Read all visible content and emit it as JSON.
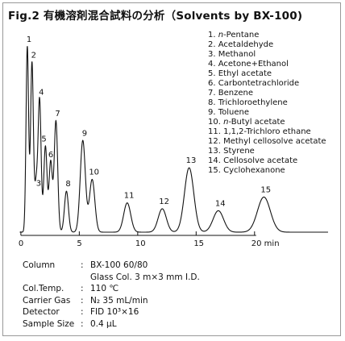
{
  "title": "Fig.2  有機溶剤混合試料の分析（Solvents by BX-100)",
  "chart_data": {
    "type": "line",
    "title": "Fig.2  有機溶剤混合試料の分析（Solvents by BX-100)",
    "xlabel": "",
    "ylabel": "",
    "xlim": [
      -0.2,
      26.5
    ],
    "ylim": [
      0,
      100
    ],
    "grid": false,
    "legend_position": "top-right",
    "x_ticks": [
      {
        "value": 0,
        "label": "0"
      },
      {
        "value": 5,
        "label": "5"
      },
      {
        "value": 10,
        "label": "10"
      },
      {
        "value": 15,
        "label": "15"
      },
      {
        "value": 20,
        "label": "20 min"
      }
    ],
    "peaks": [
      {
        "label": "1",
        "rt": 0.55,
        "height": 95,
        "width": 0.11
      },
      {
        "label": "2",
        "rt": 0.95,
        "height": 87,
        "width": 0.12
      },
      {
        "label": "3",
        "rt": 1.3,
        "height": 23,
        "width": 0.12
      },
      {
        "label": "4",
        "rt": 1.6,
        "height": 68,
        "width": 0.13
      },
      {
        "label": "5",
        "rt": 2.1,
        "height": 44,
        "width": 0.14
      },
      {
        "label": "6",
        "rt": 2.55,
        "height": 36,
        "width": 0.14
      },
      {
        "label": "7",
        "rt": 3.0,
        "height": 57,
        "width": 0.15
      },
      {
        "label": "8",
        "rt": 3.9,
        "height": 21,
        "width": 0.17
      },
      {
        "label": "9",
        "rt": 5.3,
        "height": 47,
        "width": 0.22
      },
      {
        "label": "10",
        "rt": 6.1,
        "height": 27,
        "width": 0.23
      },
      {
        "label": "11",
        "rt": 9.1,
        "height": 15,
        "width": 0.3
      },
      {
        "label": "12",
        "rt": 12.1,
        "height": 12,
        "width": 0.35
      },
      {
        "label": "13",
        "rt": 14.4,
        "height": 33,
        "width": 0.4
      },
      {
        "label": "14",
        "rt": 16.9,
        "height": 11,
        "width": 0.45
      },
      {
        "label": "15",
        "rt": 20.8,
        "height": 18,
        "width": 0.55
      }
    ]
  },
  "legend": [
    {
      "num": "1.",
      "name_prefix": "n",
      "name": "-Pentane"
    },
    {
      "num": "2.",
      "name_prefix": "",
      "name": "Acetaldehyde"
    },
    {
      "num": "3.",
      "name_prefix": "",
      "name": "Methanol"
    },
    {
      "num": "4.",
      "name_prefix": "",
      "name": "Acetone+Ethanol"
    },
    {
      "num": "5.",
      "name_prefix": "",
      "name": "Ethyl acetate"
    },
    {
      "num": "6.",
      "name_prefix": "",
      "name": "Carbontetrachloride"
    },
    {
      "num": "7.",
      "name_prefix": "",
      "name": "Benzene"
    },
    {
      "num": "8.",
      "name_prefix": "",
      "name": "Trichloroethylene"
    },
    {
      "num": "9.",
      "name_prefix": "",
      "name": "Toluene"
    },
    {
      "num": "10.",
      "name_prefix": "n",
      "name": "-Butyl acetate"
    },
    {
      "num": "11.",
      "name_prefix": "",
      "name": "1,1,2-Trichloro ethane"
    },
    {
      "num": "12.",
      "name_prefix": "",
      "name": "Methyl cellosolve acetate"
    },
    {
      "num": "13.",
      "name_prefix": "",
      "name": "Styrene"
    },
    {
      "num": "14.",
      "name_prefix": "",
      "name": "Cellosolve acetate"
    },
    {
      "num": "15.",
      "name_prefix": "",
      "name": "Cyclohexanone"
    }
  ],
  "conditions": [
    {
      "label": "Column",
      "colon": ":",
      "value": "BX-100  60/80"
    },
    {
      "label": "",
      "colon": "",
      "value": "Glass Col. 3 m×3 mm I.D."
    },
    {
      "label": "Col.Temp.",
      "colon": ":",
      "value": "110 ℃"
    },
    {
      "label": "Carrier Gas",
      "colon": ":",
      "value": "N₂ 35 mL/min"
    },
    {
      "label": "Detector",
      "colon": ":",
      "value": "FID 10³×16"
    },
    {
      "label": "Sample Size",
      "colon": ":",
      "value": "0.4 μL"
    }
  ],
  "colors": {
    "trace": "#111111",
    "frame": "#999999",
    "background": "#ffffff"
  }
}
